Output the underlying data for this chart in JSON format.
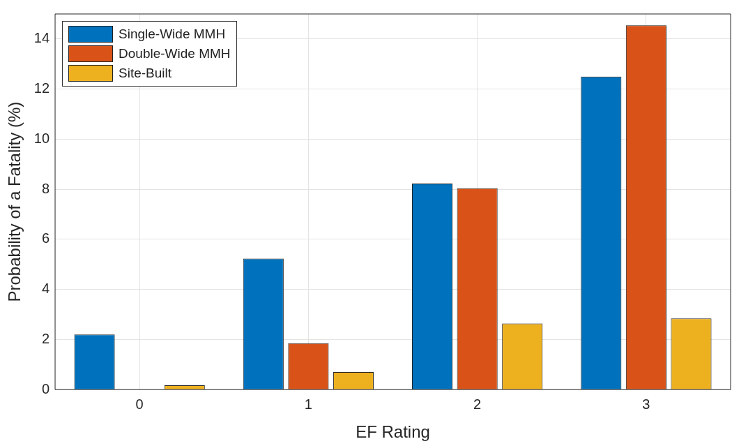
{
  "chart_data": {
    "type": "bar",
    "xlabel": "EF Rating",
    "ylabel": "Probability of a Fatality (%)",
    "categories": [
      "0",
      "1",
      "2",
      "3"
    ],
    "series": [
      {
        "name": "Single-Wide MMH",
        "color": "#0072bd",
        "values": [
          2.2,
          5.23,
          8.23,
          12.5
        ]
      },
      {
        "name": "Double-Wide MMH",
        "color": "#d95319",
        "values": [
          0,
          1.85,
          8.04,
          14.55
        ]
      },
      {
        "name": "Site-Built",
        "color": "#edb120",
        "values": [
          0.17,
          0.7,
          2.64,
          2.84
        ]
      }
    ],
    "ylim": [
      0,
      15
    ],
    "yticks": [
      0,
      2,
      4,
      6,
      8,
      10,
      12,
      14
    ],
    "grid": true,
    "legend": "top left"
  }
}
